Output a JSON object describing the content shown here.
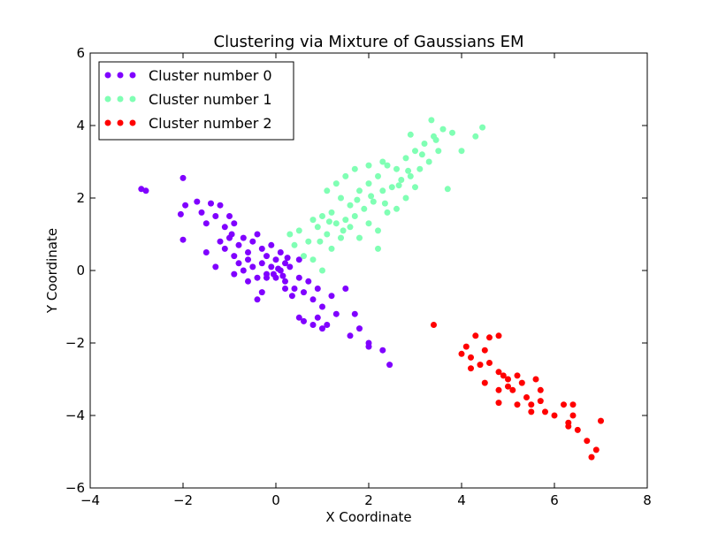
{
  "chart_data": {
    "type": "scatter",
    "title": "Clustering via Mixture of Gaussians EM",
    "xlabel": "X Coordinate",
    "ylabel": "Y Coordinate",
    "xlim": [
      -4,
      8
    ],
    "ylim": [
      -6,
      6
    ],
    "xticks": [
      "−4",
      "−2",
      "0",
      "2",
      "4",
      "6",
      "8"
    ],
    "yticks": [
      "−6",
      "−4",
      "−2",
      "0",
      "2",
      "4",
      "6"
    ],
    "grid": false,
    "legend_position": "top-left",
    "series": [
      {
        "name": "Cluster number 0",
        "color": "#8000ff",
        "points": [
          [
            -2.9,
            2.25
          ],
          [
            -2.8,
            2.2
          ],
          [
            -2.0,
            2.55
          ],
          [
            -2.05,
            1.55
          ],
          [
            -2.0,
            0.85
          ],
          [
            -1.95,
            1.8
          ],
          [
            -1.7,
            1.9
          ],
          [
            -1.6,
            1.6
          ],
          [
            -1.5,
            1.3
          ],
          [
            -1.4,
            1.85
          ],
          [
            -1.3,
            1.5
          ],
          [
            -1.2,
            1.8
          ],
          [
            -1.1,
            1.2
          ],
          [
            -1.0,
            1.5
          ],
          [
            -0.9,
            1.3
          ],
          [
            -1.2,
            0.8
          ],
          [
            -1.1,
            0.6
          ],
          [
            -1.0,
            0.9
          ],
          [
            -0.9,
            0.4
          ],
          [
            -0.8,
            0.7
          ],
          [
            -0.7,
            0.9
          ],
          [
            -0.6,
            0.5
          ],
          [
            -0.5,
            0.8
          ],
          [
            -0.4,
            1.0
          ],
          [
            -0.3,
            0.6
          ],
          [
            -0.2,
            0.4
          ],
          [
            -0.1,
            0.7
          ],
          [
            0.0,
            0.3
          ],
          [
            0.1,
            0.5
          ],
          [
            0.2,
            0.2
          ],
          [
            -0.8,
            0.2
          ],
          [
            -0.7,
            0.0
          ],
          [
            -0.6,
            -0.3
          ],
          [
            -0.5,
            0.1
          ],
          [
            -0.4,
            -0.2
          ],
          [
            -0.3,
            0.2
          ],
          [
            -0.2,
            -0.1
          ],
          [
            -0.1,
            0.1
          ],
          [
            0.0,
            -0.2
          ],
          [
            0.1,
            0.0
          ],
          [
            0.2,
            -0.3
          ],
          [
            0.3,
            0.1
          ],
          [
            0.4,
            -0.5
          ],
          [
            0.5,
            -0.2
          ],
          [
            0.6,
            -0.6
          ],
          [
            0.7,
            -0.3
          ],
          [
            0.8,
            -0.8
          ],
          [
            0.9,
            -0.5
          ],
          [
            1.0,
            -1.0
          ],
          [
            1.2,
            -0.7
          ],
          [
            0.5,
            -1.3
          ],
          [
            0.6,
            -1.4
          ],
          [
            0.8,
            -1.5
          ],
          [
            0.9,
            -1.3
          ],
          [
            1.0,
            -1.6
          ],
          [
            1.1,
            -1.5
          ],
          [
            1.3,
            -1.2
          ],
          [
            1.5,
            -0.5
          ],
          [
            1.6,
            -1.8
          ],
          [
            1.7,
            -1.2
          ],
          [
            1.8,
            -1.6
          ],
          [
            2.0,
            -2.0
          ],
          [
            2.0,
            -2.1
          ],
          [
            2.3,
            -2.2
          ],
          [
            2.45,
            -2.6
          ],
          [
            -0.4,
            -0.8
          ],
          [
            -0.3,
            -0.6
          ],
          [
            0.2,
            -0.5
          ],
          [
            0.35,
            -0.7
          ],
          [
            0.5,
            0.3
          ],
          [
            -0.2,
            -0.2
          ],
          [
            0.05,
            0.05
          ],
          [
            -0.05,
            -0.1
          ],
          [
            0.15,
            -0.15
          ],
          [
            0.25,
            0.35
          ],
          [
            -1.5,
            0.5
          ],
          [
            -1.3,
            0.1
          ],
          [
            -0.9,
            -0.1
          ],
          [
            -0.6,
            0.3
          ],
          [
            -0.95,
            1.0
          ]
        ]
      },
      {
        "name": "Cluster number 1",
        "color": "#80ffb4",
        "points": [
          [
            0.3,
            1.0
          ],
          [
            0.4,
            0.7
          ],
          [
            0.5,
            1.1
          ],
          [
            0.6,
            0.4
          ],
          [
            0.7,
            0.8
          ],
          [
            0.8,
            1.4
          ],
          [
            0.9,
            1.2
          ],
          [
            1.0,
            1.5
          ],
          [
            1.1,
            1.0
          ],
          [
            1.2,
            1.6
          ],
          [
            1.3,
            1.3
          ],
          [
            1.4,
            2.0
          ],
          [
            1.5,
            1.4
          ],
          [
            1.6,
            1.8
          ],
          [
            1.7,
            1.5
          ],
          [
            1.8,
            2.2
          ],
          [
            1.9,
            1.7
          ],
          [
            2.0,
            2.4
          ],
          [
            2.1,
            1.9
          ],
          [
            2.2,
            2.6
          ],
          [
            2.3,
            2.2
          ],
          [
            2.4,
            2.9
          ],
          [
            2.5,
            2.3
          ],
          [
            2.6,
            2.8
          ],
          [
            2.7,
            2.5
          ],
          [
            2.8,
            3.1
          ],
          [
            2.9,
            2.6
          ],
          [
            3.0,
            3.3
          ],
          [
            3.1,
            2.8
          ],
          [
            3.2,
            3.5
          ],
          [
            3.3,
            3.0
          ],
          [
            3.4,
            3.7
          ],
          [
            3.5,
            3.3
          ],
          [
            3.6,
            3.9
          ],
          [
            3.8,
            3.8
          ],
          [
            4.0,
            3.3
          ],
          [
            4.3,
            3.7
          ],
          [
            4.45,
            3.95
          ],
          [
            3.7,
            2.25
          ],
          [
            3.35,
            4.15
          ],
          [
            0.8,
            0.3
          ],
          [
            1.0,
            0.0
          ],
          [
            1.2,
            0.6
          ],
          [
            1.4,
            0.9
          ],
          [
            1.6,
            1.2
          ],
          [
            1.8,
            0.9
          ],
          [
            2.0,
            1.3
          ],
          [
            2.2,
            1.1
          ],
          [
            2.2,
            0.6
          ],
          [
            2.4,
            1.6
          ],
          [
            2.6,
            1.7
          ],
          [
            2.8,
            2.0
          ],
          [
            3.0,
            2.3
          ],
          [
            1.1,
            2.2
          ],
          [
            1.3,
            2.4
          ],
          [
            1.5,
            2.6
          ],
          [
            1.7,
            2.8
          ],
          [
            2.0,
            2.9
          ],
          [
            2.3,
            3.0
          ],
          [
            2.9,
            3.75
          ],
          [
            0.95,
            0.8
          ],
          [
            1.15,
            1.35
          ],
          [
            1.45,
            1.1
          ],
          [
            1.75,
            1.95
          ],
          [
            2.05,
            2.05
          ],
          [
            2.35,
            1.85
          ],
          [
            2.65,
            2.35
          ],
          [
            2.85,
            2.75
          ],
          [
            3.15,
            3.2
          ],
          [
            3.45,
            3.6
          ]
        ]
      },
      {
        "name": "Cluster number 2",
        "color": "#ff0000",
        "points": [
          [
            3.4,
            -1.5
          ],
          [
            4.0,
            -2.3
          ],
          [
            4.1,
            -2.1
          ],
          [
            4.2,
            -2.4
          ],
          [
            4.2,
            -2.7
          ],
          [
            4.3,
            -1.8
          ],
          [
            4.4,
            -2.6
          ],
          [
            4.5,
            -2.2
          ],
          [
            4.5,
            -3.1
          ],
          [
            4.6,
            -1.85
          ],
          [
            4.8,
            -1.8
          ],
          [
            4.8,
            -2.8
          ],
          [
            4.8,
            -3.3
          ],
          [
            4.8,
            -3.65
          ],
          [
            4.9,
            -2.9
          ],
          [
            5.0,
            -3.2
          ],
          [
            5.0,
            -3.0
          ],
          [
            5.1,
            -3.3
          ],
          [
            5.2,
            -2.9
          ],
          [
            5.2,
            -3.7
          ],
          [
            5.3,
            -3.1
          ],
          [
            5.4,
            -3.5
          ],
          [
            5.5,
            -3.7
          ],
          [
            5.5,
            -3.9
          ],
          [
            5.6,
            -3.0
          ],
          [
            5.7,
            -3.3
          ],
          [
            5.7,
            -3.6
          ],
          [
            5.8,
            -3.9
          ],
          [
            6.0,
            -4.0
          ],
          [
            6.2,
            -3.7
          ],
          [
            6.3,
            -4.2
          ],
          [
            6.3,
            -4.3
          ],
          [
            6.4,
            -3.7
          ],
          [
            6.4,
            -4.0
          ],
          [
            6.5,
            -4.4
          ],
          [
            6.7,
            -4.7
          ],
          [
            6.8,
            -5.15
          ],
          [
            6.9,
            -4.95
          ],
          [
            7.0,
            -4.15
          ],
          [
            4.6,
            -2.55
          ]
        ]
      }
    ]
  }
}
